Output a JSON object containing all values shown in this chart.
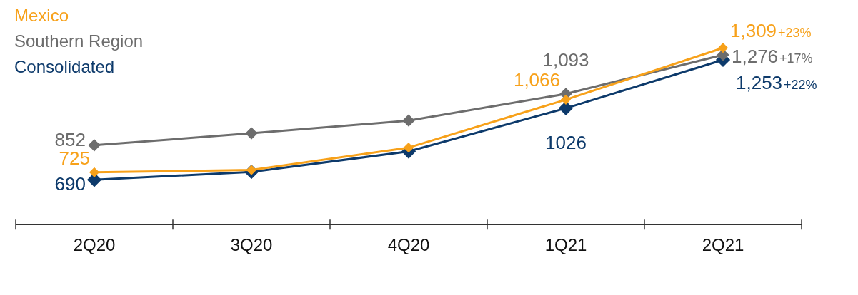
{
  "chart_data": {
    "type": "line",
    "categories": [
      "2Q20",
      "3Q20",
      "4Q20",
      "1Q21",
      "2Q21"
    ],
    "marker": "diamond",
    "legend": "top left",
    "grid": false,
    "series": [
      {
        "name": "Mexico",
        "color": "#f7a11a",
        "values": [
          725,
          736,
          841,
          1066,
          1309
        ],
        "value_labels": [
          "725",
          null,
          null,
          "1,066",
          "1,309"
        ]
      },
      {
        "name": "Southern Region",
        "color": "#6d6d6d",
        "values": [
          852,
          908,
          968,
          1093,
          1276
        ],
        "value_labels": [
          "852",
          null,
          null,
          "1,093",
          "1,276"
        ]
      },
      {
        "name": "Consolidated",
        "color": "#0d3a6b",
        "values": [
          690,
          727,
          823,
          1026,
          1253
        ],
        "value_labels": [
          "690",
          null,
          null,
          "1026",
          "1,253"
        ]
      }
    ],
    "annotations": [
      "+23%",
      "+17%",
      "+22%"
    ]
  }
}
